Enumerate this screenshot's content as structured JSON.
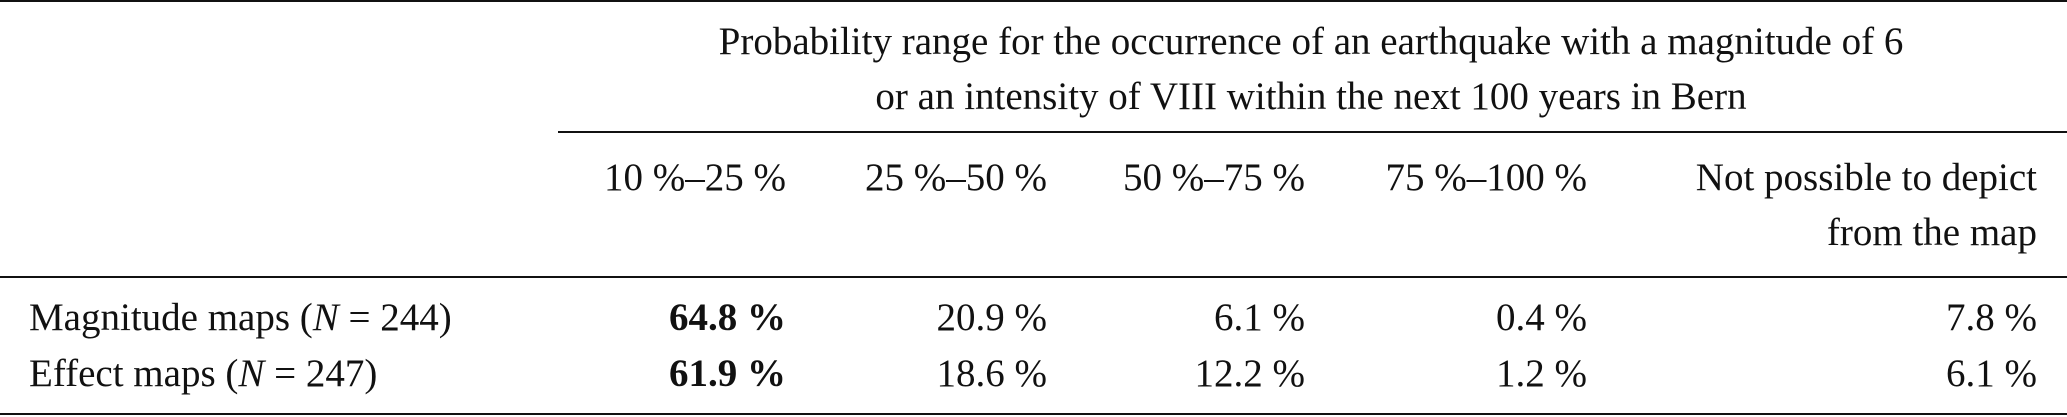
{
  "table": {
    "spanner": [
      "Probability range for the occurrence of an earthquake with a magnitude of 6",
      "or an intensity of VIII within the next 100 years in Bern"
    ],
    "columns": [
      [
        "10 %–25 %"
      ],
      [
        "25 %–50 %"
      ],
      [
        "50 %–75 %"
      ],
      [
        "75 %–100 %"
      ],
      [
        "Not possible to depict",
        "from the map"
      ]
    ],
    "rows": [
      {
        "label": [
          "Magnitude maps (",
          "N",
          " = 244)"
        ],
        "cells": [
          "64.8 %",
          "20.9 %",
          "6.1 %",
          "0.4 %",
          "7.8 %"
        ]
      },
      {
        "label": [
          "Effect maps (",
          "N",
          " = 247)"
        ],
        "cells": [
          "61.9 %",
          "18.6 %",
          "12.2 %",
          "1.2 %",
          "6.1 %"
        ]
      }
    ]
  }
}
